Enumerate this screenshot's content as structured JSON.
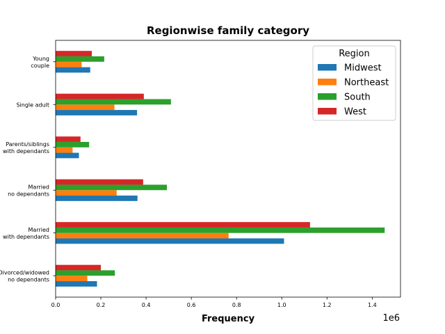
{
  "chart_data": {
    "type": "bar",
    "orientation": "horizontal",
    "title": "Regionwise family category",
    "xlabel": "Frequency",
    "ylabel": "",
    "x_offset_text": "1e6",
    "xlim": [
      0,
      1.525
    ],
    "x_ticks": [
      0.0,
      0.2,
      0.4,
      0.6,
      0.8,
      1.0,
      1.2,
      1.4
    ],
    "x_tick_labels": [
      "0.0",
      "0.2",
      "0.4",
      "0.6",
      "0.8",
      "1.0",
      "1.2",
      "1.4"
    ],
    "categories": [
      [
        "Divorced/widowed",
        "no dependants"
      ],
      [
        "Married",
        "with dependants"
      ],
      [
        "Married",
        "no dependants"
      ],
      [
        "Parents/siblings",
        "with dependants"
      ],
      [
        "Single adult"
      ],
      [
        "Young",
        "couple"
      ]
    ],
    "legend": {
      "title": "Region",
      "position": "top-right"
    },
    "grid": false,
    "series": [
      {
        "name": "Midwest",
        "color": "#1f77b4",
        "values": [
          0.183,
          1.01,
          0.362,
          0.103,
          0.36,
          0.153
        ]
      },
      {
        "name": "Northeast",
        "color": "#ff7f0e",
        "values": [
          0.14,
          0.765,
          0.27,
          0.075,
          0.26,
          0.115
        ]
      },
      {
        "name": "South",
        "color": "#2ca02c",
        "values": [
          0.262,
          1.455,
          0.492,
          0.148,
          0.51,
          0.215
        ]
      },
      {
        "name": "West",
        "color": "#d62728",
        "values": [
          0.2,
          1.125,
          0.387,
          0.11,
          0.39,
          0.16
        ]
      }
    ]
  }
}
